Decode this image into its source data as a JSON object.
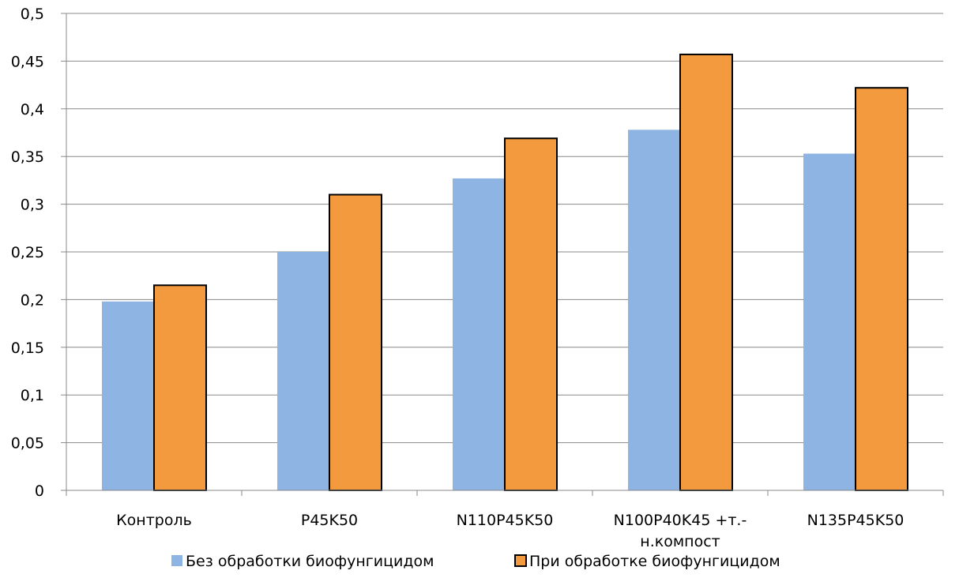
{
  "chart_data": {
    "type": "bar",
    "categories": [
      [
        "Контроль"
      ],
      [
        "P45K50"
      ],
      [
        "N110P45K50"
      ],
      [
        "N100P40K45 +т.-",
        "н.компост"
      ],
      [
        "N135P45K50"
      ]
    ],
    "series": [
      {
        "name": "Без обработки биофунгицидом",
        "values": [
          0.198,
          0.25,
          0.327,
          0.378,
          0.353
        ],
        "color": "#8EB4E3",
        "outlined": false
      },
      {
        "name": "При обработке биофунгицидом",
        "values": [
          0.215,
          0.31,
          0.369,
          0.457,
          0.422
        ],
        "color": "#F39A3E",
        "outlined": true
      }
    ],
    "ylim": [
      0,
      0.5
    ],
    "yticks": [
      "0",
      "0,05",
      "0,1",
      "0,15",
      "0,2",
      "0,25",
      "0,3",
      "0,35",
      "0,4",
      "0,45",
      "0,5"
    ],
    "grid": true,
    "legend": "bottom",
    "title": "",
    "xlabel": "",
    "ylabel": ""
  }
}
